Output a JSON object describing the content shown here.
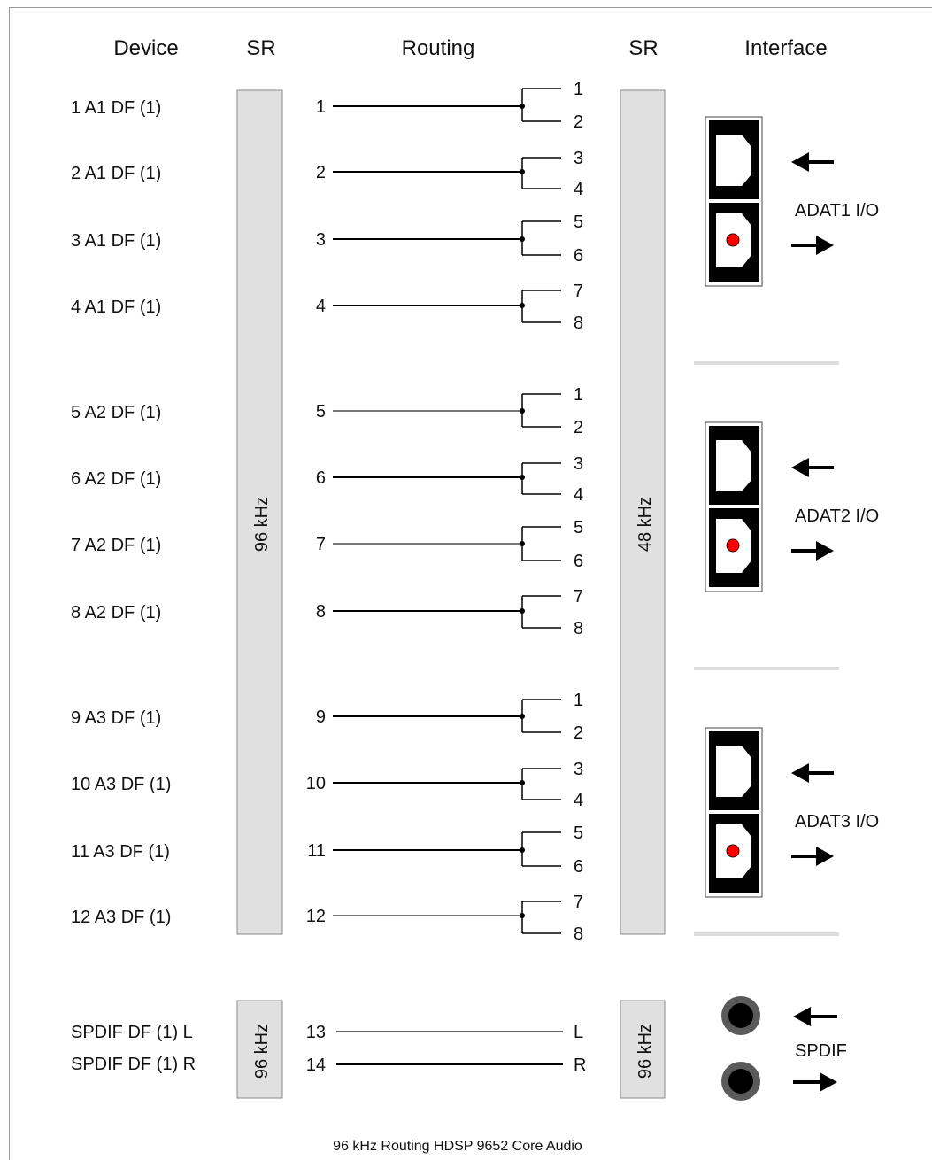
{
  "headers": {
    "device": "Device",
    "sr_in": "SR",
    "routing": "Routing",
    "sr_out": "SR",
    "interface": "Interface"
  },
  "devices": [
    "1 A1 DF (1)",
    "2 A1 DF (1)",
    "3 A1 DF (1)",
    "4 A1 DF (1)",
    "5 A2 DF (1)",
    "6 A2 DF (1)",
    "7 A2 DF (1)",
    "8 A2 DF (1)",
    "9 A3 DF (1)",
    "10 A3 DF (1)",
    "11 A3 DF (1)",
    "12 A3 DF (1)"
  ],
  "spdif_devices": [
    "SPDIF DF (1) L",
    "SPDIF DF (1) R"
  ],
  "sr_left_main": "96 kHz",
  "sr_right_main": "48 kHz",
  "sr_left_spdif": "96 kHz",
  "sr_right_spdif": "96 kHz",
  "routes": [
    {
      "in": "1",
      "out": [
        "1",
        "2"
      ]
    },
    {
      "in": "2",
      "out": [
        "3",
        "4"
      ]
    },
    {
      "in": "3",
      "out": [
        "5",
        "6"
      ]
    },
    {
      "in": "4",
      "out": [
        "7",
        "8"
      ]
    },
    {
      "in": "5",
      "out": [
        "1",
        "2"
      ]
    },
    {
      "in": "6",
      "out": [
        "3",
        "4"
      ]
    },
    {
      "in": "7",
      "out": [
        "5",
        "6"
      ]
    },
    {
      "in": "8",
      "out": [
        "7",
        "8"
      ]
    },
    {
      "in": "9",
      "out": [
        "1",
        "2"
      ]
    },
    {
      "in": "10",
      "out": [
        "3",
        "4"
      ]
    },
    {
      "in": "11",
      "out": [
        "5",
        "6"
      ]
    },
    {
      "in": "12",
      "out": [
        "7",
        "8"
      ]
    }
  ],
  "spdif_routes": [
    {
      "in": "13",
      "out": "L"
    },
    {
      "in": "14",
      "out": "R"
    }
  ],
  "interfaces": [
    "ADAT1 I/O",
    "ADAT2 I/O",
    "ADAT3 I/O"
  ],
  "spdif_interface": "SPDIF",
  "footer": "96 kHz Routing HDSP 9652 Core Audio",
  "colors": {
    "sr_bar_fill": "#e0e0e0",
    "sr_bar_stroke": "#888888",
    "optical_body": "#000000",
    "optical_led": "#ff0000",
    "coax_ring": "#5a5a5a",
    "divider": "#dddddd"
  }
}
